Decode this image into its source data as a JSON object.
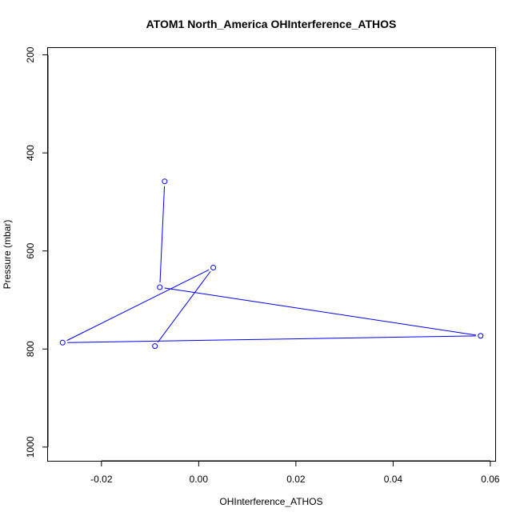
{
  "chart_data": {
    "type": "line",
    "title": "ATOM1 North_America OHInterference_ATHOS",
    "xlabel": "OHInterference_ATHOS",
    "ylabel": "Pressure (mbar)",
    "xlim": [
      -0.031,
      0.061
    ],
    "ylim": [
      1028,
      186
    ],
    "y_axis_inverted": true,
    "x_ticks": [
      -0.02,
      0.0,
      0.02,
      0.04,
      0.06
    ],
    "x_tick_labels": [
      "-0.02",
      "0.00",
      "0.02",
      "0.04",
      "0.06"
    ],
    "y_ticks": [
      200,
      400,
      600,
      800,
      1000
    ],
    "y_tick_labels": [
      "200",
      "400",
      "600",
      "800",
      "1000"
    ],
    "series": [
      {
        "marker": "open-circle",
        "color": "#0000ff",
        "points": [
          {
            "x": -0.007,
            "y": 458
          },
          {
            "x": -0.008,
            "y": 674
          },
          {
            "x": 0.058,
            "y": 773
          },
          {
            "x": -0.028,
            "y": 787
          },
          {
            "x": 0.003,
            "y": 634
          },
          {
            "x": -0.009,
            "y": 794
          }
        ]
      }
    ],
    "grid": false,
    "legend": "none",
    "axis_color": "#000000",
    "series_color": "#0000ff"
  }
}
